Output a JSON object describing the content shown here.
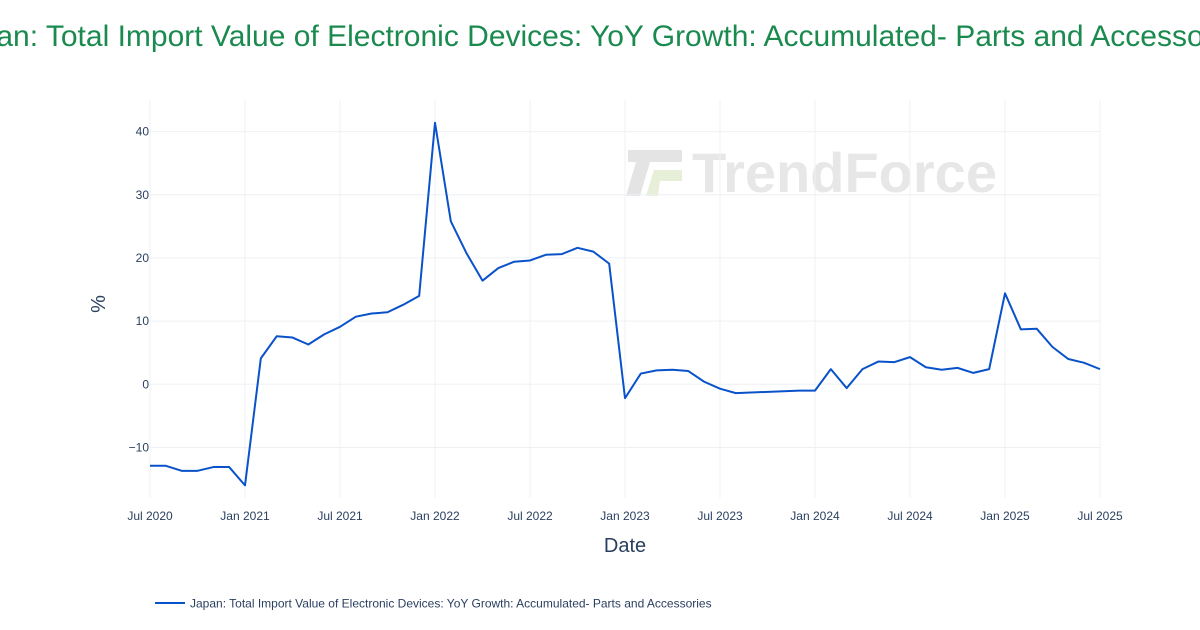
{
  "page": {
    "title": "Japan: Total Import Value of Electronic Devices: YoY Growth: Accumulated- Parts and Accessories"
  },
  "watermark": {
    "text": "TrendForce"
  },
  "colors": {
    "title": "#1a8a4f",
    "series": "#0a52c9",
    "grid": "#eef0f4",
    "text": "#2a3f5f"
  },
  "chart_data": {
    "type": "line",
    "title": "Japan: Total Import Value of Electronic Devices: YoY Growth: Accumulated- Parts and Accessories",
    "xlabel": "Date",
    "ylabel": "%",
    "x_ticks": [
      "Jul 2020",
      "Jan 2021",
      "Jul 2021",
      "Jan 2022",
      "Jul 2022",
      "Jan 2023",
      "Jul 2023",
      "Jan 2024",
      "Jul 2024",
      "Jan 2025",
      "Jul 2025"
    ],
    "y_ticks": [
      -10,
      0,
      10,
      20,
      30,
      40
    ],
    "xlim": [
      "2020-07",
      "2025-07"
    ],
    "ylim": [
      -18,
      45
    ],
    "grid": true,
    "legend_position": "bottom",
    "series": [
      {
        "name": "Japan: Total Import Value of Electronic Devices: YoY Growth: Accumulated- Parts and Accessories",
        "color": "#0a52c9",
        "points": [
          [
            "2020-07",
            -12.9
          ],
          [
            "2020-08",
            -12.9
          ],
          [
            "2020-09",
            -13.7
          ],
          [
            "2020-10",
            -13.7
          ],
          [
            "2020-11",
            -13.1
          ],
          [
            "2020-12",
            -13.1
          ],
          [
            "2021-01",
            -16.0
          ],
          [
            "2021-02",
            4.1
          ],
          [
            "2021-03",
            7.6
          ],
          [
            "2021-04",
            7.4
          ],
          [
            "2021-05",
            6.3
          ],
          [
            "2021-06",
            7.9
          ],
          [
            "2021-07",
            9.1
          ],
          [
            "2021-08",
            10.7
          ],
          [
            "2021-09",
            11.2
          ],
          [
            "2021-10",
            11.4
          ],
          [
            "2021-11",
            12.6
          ],
          [
            "2021-12",
            14.0
          ],
          [
            "2022-01",
            41.4
          ],
          [
            "2022-02",
            25.8
          ],
          [
            "2022-03",
            20.7
          ],
          [
            "2022-04",
            16.4
          ],
          [
            "2022-05",
            18.4
          ],
          [
            "2022-06",
            19.4
          ],
          [
            "2022-07",
            19.6
          ],
          [
            "2022-08",
            20.5
          ],
          [
            "2022-09",
            20.6
          ],
          [
            "2022-10",
            21.6
          ],
          [
            "2022-11",
            21.0
          ],
          [
            "2022-12",
            19.1
          ],
          [
            "2023-01",
            -2.2
          ],
          [
            "2023-02",
            1.7
          ],
          [
            "2023-03",
            2.2
          ],
          [
            "2023-04",
            2.3
          ],
          [
            "2023-05",
            2.1
          ],
          [
            "2023-06",
            0.4
          ],
          [
            "2023-07",
            -0.7
          ],
          [
            "2023-08",
            -1.4
          ],
          [
            "2023-12",
            -1.0
          ],
          [
            "2024-01",
            -1.0
          ],
          [
            "2024-02",
            2.4
          ],
          [
            "2024-03",
            -0.6
          ],
          [
            "2024-04",
            2.4
          ],
          [
            "2024-05",
            3.6
          ],
          [
            "2024-06",
            3.5
          ],
          [
            "2024-07",
            4.3
          ],
          [
            "2024-08",
            2.7
          ],
          [
            "2024-09",
            2.3
          ],
          [
            "2024-10",
            2.6
          ],
          [
            "2024-11",
            1.8
          ],
          [
            "2024-12",
            2.4
          ],
          [
            "2025-01",
            14.4
          ],
          [
            "2025-02",
            8.7
          ],
          [
            "2025-03",
            8.8
          ],
          [
            "2025-04",
            5.9
          ],
          [
            "2025-05",
            4.0
          ],
          [
            "2025-06",
            3.4
          ],
          [
            "2025-07",
            2.4
          ]
        ]
      }
    ]
  }
}
